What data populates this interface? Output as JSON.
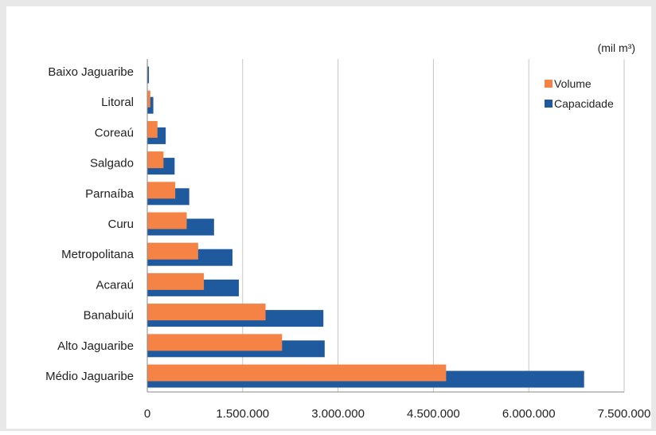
{
  "chart_data": {
    "type": "bar",
    "orientation": "horizontal",
    "unit_label": "(mil m³)",
    "categories": [
      "Baixo Jaguaribe",
      "Litoral",
      "Coreaú",
      "Salgado",
      "Parnaíba",
      "Curu",
      "Metropolitana",
      "Acaraú",
      "Banabuiú",
      "Alto Jaguaribe",
      "Médio Jaguaribe"
    ],
    "series": [
      {
        "name": "Volume",
        "color": "#f58345",
        "values": [
          8000,
          48000,
          160000,
          255000,
          440000,
          620000,
          800000,
          890000,
          1860000,
          2120000,
          4700000
        ]
      },
      {
        "name": "Capacidade",
        "color": "#1f5a9e",
        "values": [
          26000,
          95000,
          290000,
          430000,
          660000,
          1050000,
          1340000,
          1440000,
          2770000,
          2790000,
          6870000
        ]
      }
    ],
    "xlim": [
      0,
      7500000
    ],
    "xticks": [
      0,
      1500000,
      3000000,
      4500000,
      6000000,
      7500000
    ],
    "xtick_labels": [
      "0",
      "1.500.000",
      "3.000.000",
      "4.500.000",
      "6.000.000",
      "7.500.000"
    ],
    "grid": true,
    "legend_position": "top-right",
    "background_color": "#e8e8e8"
  }
}
